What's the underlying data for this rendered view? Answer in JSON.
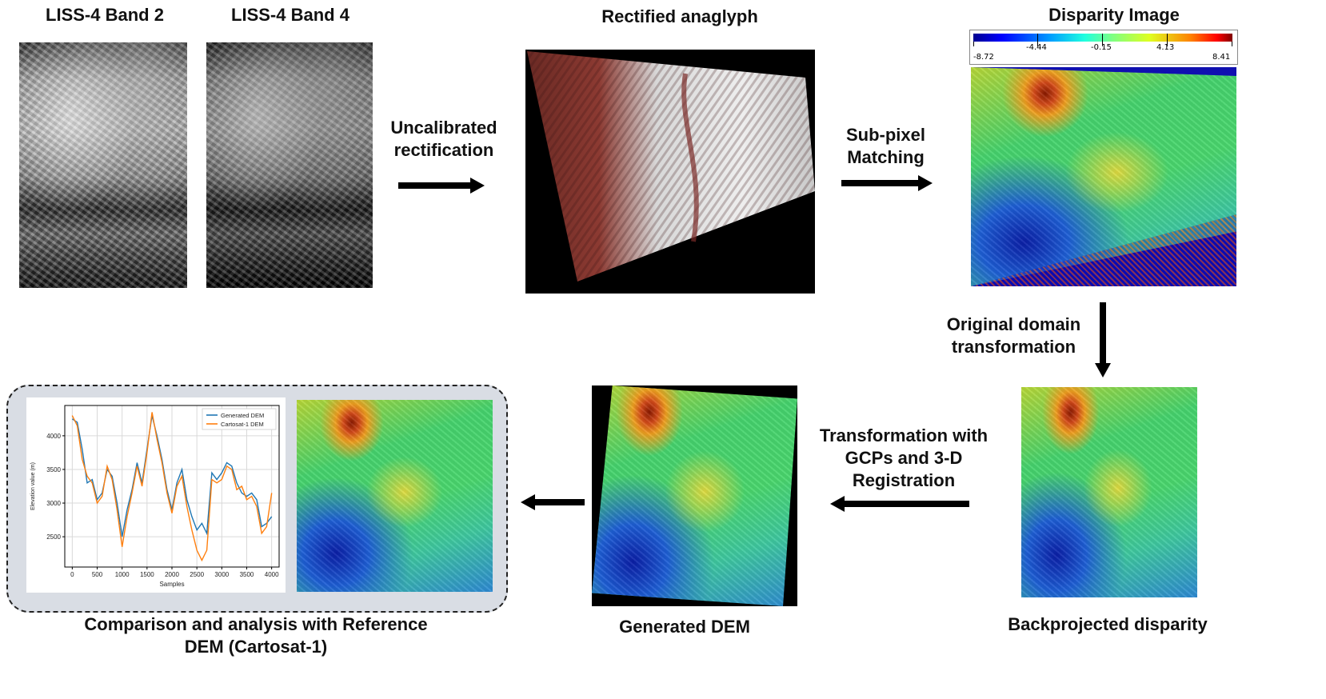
{
  "labels": {
    "band2": "LISS-4 Band 2",
    "band4": "LISS-4 Band 4",
    "anaglyph": "Rectified anaglyph",
    "disparity": "Disparity Image",
    "uncal_line1": "Uncalibrated",
    "uncal_line2": "rectification",
    "subpixel_line1": "Sub-pixel",
    "subpixel_line2": "Matching",
    "orig_line1": "Original domain",
    "orig_line2": "transformation",
    "gcp_line1": "Transformation with",
    "gcp_line2": "GCPs and 3-D",
    "gcp_line3": "Registration",
    "backproj": "Backprojected disparity",
    "generated": "Generated DEM",
    "comparison_line1": "Comparison and analysis with Reference",
    "comparison_line2": "DEM (Cartosat-1)"
  },
  "colorbar": {
    "ticks": [
      "-8.72",
      "-4.44",
      "-0.15",
      "4.13",
      "8.41"
    ],
    "tick_values": [
      -8.72,
      -4.44,
      -0.15,
      4.13,
      8.41
    ],
    "range": [
      -8.72,
      8.41
    ],
    "colormap": "jet"
  },
  "colors": {
    "series_generated": "#1f77b4",
    "series_cartosat": "#ff7f0e",
    "comparison_bg": "#d9dde4"
  },
  "chart_data": {
    "type": "line",
    "xlabel": "Samples",
    "ylabel": "Elevation value (m)",
    "xlim": [
      -150,
      4150
    ],
    "ylim": [
      2050,
      4450
    ],
    "xticks": [
      0,
      500,
      1000,
      1500,
      2000,
      2500,
      3000,
      3500,
      4000
    ],
    "yticks": [
      2500,
      3000,
      3500,
      4000
    ],
    "grid": true,
    "legend_position": "upper right",
    "x": [
      0,
      100,
      200,
      300,
      400,
      500,
      600,
      700,
      800,
      900,
      1000,
      1100,
      1200,
      1300,
      1400,
      1500,
      1600,
      1700,
      1800,
      1900,
      2000,
      2100,
      2200,
      2300,
      2400,
      2500,
      2600,
      2700,
      2800,
      2900,
      3000,
      3100,
      3200,
      3300,
      3400,
      3500,
      3600,
      3700,
      3800,
      3900,
      4000
    ],
    "series": [
      {
        "name": "Generated DEM",
        "color": "#1f77b4",
        "values": [
          4250,
          4200,
          3800,
          3300,
          3350,
          3050,
          3150,
          3500,
          3400,
          3000,
          2500,
          2900,
          3200,
          3600,
          3300,
          3800,
          4300,
          4000,
          3650,
          3200,
          2900,
          3300,
          3500,
          3050,
          2800,
          2600,
          2700,
          2550,
          3450,
          3350,
          3450,
          3600,
          3550,
          3300,
          3150,
          3100,
          3150,
          3050,
          2650,
          2700,
          2800
        ]
      },
      {
        "name": "Cartosat-1 DEM",
        "color": "#ff7f0e",
        "values": [
          4300,
          4150,
          3650,
          3400,
          3300,
          3000,
          3100,
          3550,
          3350,
          2900,
          2350,
          2800,
          3150,
          3550,
          3250,
          3750,
          4350,
          3950,
          3600,
          3150,
          2850,
          3250,
          3400,
          2950,
          2600,
          2300,
          2150,
          2300,
          3350,
          3300,
          3350,
          3550,
          3500,
          3200,
          3250,
          3050,
          3100,
          2950,
          2550,
          2650,
          3150
        ]
      }
    ]
  }
}
